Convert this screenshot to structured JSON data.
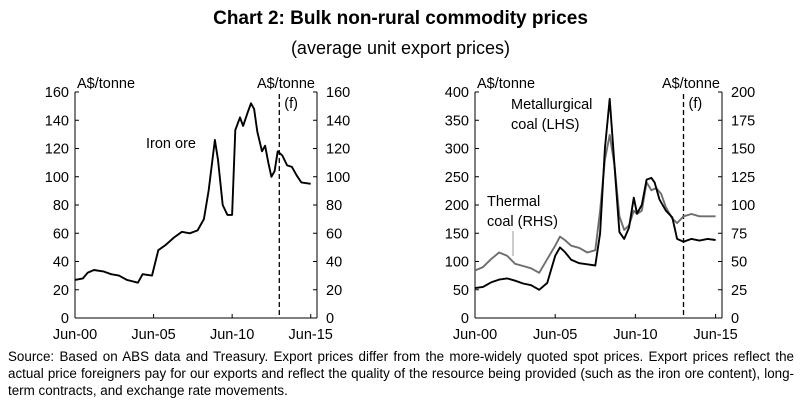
{
  "title": "Chart 2: Bulk non-rural commodity prices",
  "subtitle": "(average unit export prices)",
  "source": "Source: Based on ABS data and Treasury. Export prices differ from the more-widely quoted spot prices. Export prices reflect the actual price foreigners pay for our exports and reflect the quality of the resource being provided (such as the iron ore content), long-term contracts, and exchange rate movements.",
  "colors": {
    "primary": "#000000",
    "secondary": "#6e6e6e"
  },
  "chart_data": [
    {
      "type": "line",
      "name": "iron-ore",
      "unit_left": "A$/tonne",
      "unit_right": "A$/tonne",
      "forecast_marker": "(f)",
      "forecast_start": 2013.0,
      "xlim": [
        2000.0,
        2015.4
      ],
      "ylim": [
        0,
        160
      ],
      "y_ticks": [
        0,
        20,
        40,
        60,
        80,
        100,
        120,
        140,
        160
      ],
      "x_tick_labels": [
        {
          "label": "Jun-00",
          "x": 2000.0
        },
        {
          "label": "Jun-05",
          "x": 2005.0
        },
        {
          "label": "Jun-10",
          "x": 2010.0
        },
        {
          "label": "Jun-15",
          "x": 2015.0
        }
      ],
      "series": [
        {
          "name": "Iron ore",
          "label": "Iron ore",
          "color": "#000000",
          "points": [
            [
              2000.0,
              27
            ],
            [
              2000.5,
              28
            ],
            [
              2000.8,
              32
            ],
            [
              2001.2,
              34
            ],
            [
              2001.8,
              33
            ],
            [
              2002.3,
              31
            ],
            [
              2002.8,
              30
            ],
            [
              2003.3,
              27
            ],
            [
              2004.0,
              25
            ],
            [
              2004.3,
              31
            ],
            [
              2004.9,
              30
            ],
            [
              2005.3,
              48
            ],
            [
              2005.8,
              52
            ],
            [
              2006.3,
              57
            ],
            [
              2006.8,
              61
            ],
            [
              2007.3,
              60
            ],
            [
              2007.8,
              62
            ],
            [
              2008.2,
              70
            ],
            [
              2008.5,
              90
            ],
            [
              2008.9,
              126
            ],
            [
              2009.1,
              112
            ],
            [
              2009.4,
              80
            ],
            [
              2009.7,
              73
            ],
            [
              2010.0,
              73
            ],
            [
              2010.2,
              133
            ],
            [
              2010.5,
              142
            ],
            [
              2010.7,
              136
            ],
            [
              2011.0,
              146
            ],
            [
              2011.2,
              152
            ],
            [
              2011.4,
              148
            ],
            [
              2011.6,
              132
            ],
            [
              2011.9,
              118
            ],
            [
              2012.1,
              122
            ],
            [
              2012.3,
              110
            ],
            [
              2012.5,
              100
            ],
            [
              2012.7,
              104
            ],
            [
              2012.9,
              118
            ],
            [
              2013.2,
              115
            ],
            [
              2013.5,
              108
            ],
            [
              2013.8,
              107
            ],
            [
              2014.1,
              101
            ],
            [
              2014.4,
              96
            ],
            [
              2015.0,
              95
            ]
          ]
        }
      ]
    },
    {
      "type": "line",
      "name": "coal",
      "unit_left": "A$/tonne",
      "unit_right": "A$/tonne",
      "forecast_marker": "(f)",
      "forecast_start": 2013.0,
      "xlim": [
        2000.0,
        2015.4
      ],
      "ylim_left": [
        0,
        400
      ],
      "ylim_right": [
        0,
        200
      ],
      "y_ticks_left": [
        0,
        50,
        100,
        150,
        200,
        250,
        300,
        350,
        400
      ],
      "y_ticks_right": [
        0,
        25,
        50,
        75,
        100,
        125,
        150,
        175,
        200
      ],
      "x_tick_labels": [
        {
          "label": "Jun-00",
          "x": 2000.0
        },
        {
          "label": "Jun-05",
          "x": 2005.0
        },
        {
          "label": "Jun-10",
          "x": 2010.0
        },
        {
          "label": "Jun-15",
          "x": 2015.0
        }
      ],
      "series": [
        {
          "name": "Metallurgical coal (LHS)",
          "label_lines": [
            "Metallurgical",
            "coal (LHS)"
          ],
          "axis": "left",
          "color": "#000000",
          "points": [
            [
              2000.0,
              53
            ],
            [
              2000.5,
              55
            ],
            [
              2001.0,
              63
            ],
            [
              2001.5,
              68
            ],
            [
              2002.0,
              70
            ],
            [
              2002.5,
              66
            ],
            [
              2003.0,
              61
            ],
            [
              2003.5,
              58
            ],
            [
              2004.0,
              50
            ],
            [
              2004.5,
              62
            ],
            [
              2005.0,
              110
            ],
            [
              2005.3,
              125
            ],
            [
              2005.6,
              117
            ],
            [
              2006.0,
              103
            ],
            [
              2006.5,
              97
            ],
            [
              2007.0,
              95
            ],
            [
              2007.5,
              93
            ],
            [
              2007.8,
              150
            ],
            [
              2008.1,
              300
            ],
            [
              2008.4,
              388
            ],
            [
              2008.7,
              270
            ],
            [
              2009.0,
              152
            ],
            [
              2009.3,
              140
            ],
            [
              2009.6,
              160
            ],
            [
              2009.9,
              213
            ],
            [
              2010.1,
              185
            ],
            [
              2010.4,
              200
            ],
            [
              2010.7,
              245
            ],
            [
              2011.0,
              248
            ],
            [
              2011.2,
              240
            ],
            [
              2011.5,
              210
            ],
            [
              2011.9,
              190
            ],
            [
              2012.3,
              178
            ],
            [
              2012.6,
              140
            ],
            [
              2013.0,
              135
            ],
            [
              2013.5,
              140
            ],
            [
              2014.0,
              137
            ],
            [
              2014.5,
              140
            ],
            [
              2015.0,
              138
            ]
          ]
        },
        {
          "name": "Thermal coal (RHS)",
          "label_lines": [
            "Thermal",
            "coal (RHS)"
          ],
          "axis": "right",
          "color": "#6e6e6e",
          "points": [
            [
              2000.0,
              42
            ],
            [
              2000.5,
              45
            ],
            [
              2001.0,
              52
            ],
            [
              2001.5,
              58
            ],
            [
              2002.0,
              55
            ],
            [
              2002.5,
              48
            ],
            [
              2003.0,
              46
            ],
            [
              2003.5,
              44
            ],
            [
              2004.0,
              40
            ],
            [
              2004.5,
              52
            ],
            [
              2005.0,
              64
            ],
            [
              2005.3,
              72
            ],
            [
              2005.6,
              69
            ],
            [
              2006.0,
              64
            ],
            [
              2006.5,
              62
            ],
            [
              2007.0,
              58
            ],
            [
              2007.5,
              60
            ],
            [
              2007.8,
              95
            ],
            [
              2008.1,
              140
            ],
            [
              2008.4,
              162
            ],
            [
              2008.7,
              135
            ],
            [
              2009.0,
              90
            ],
            [
              2009.3,
              78
            ],
            [
              2009.6,
              82
            ],
            [
              2009.9,
              95
            ],
            [
              2010.1,
              92
            ],
            [
              2010.4,
              95
            ],
            [
              2010.7,
              120
            ],
            [
              2011.0,
              113
            ],
            [
              2011.3,
              115
            ],
            [
              2011.6,
              110
            ],
            [
              2011.9,
              98
            ],
            [
              2012.3,
              88
            ],
            [
              2012.6,
              84
            ],
            [
              2013.0,
              90
            ],
            [
              2013.5,
              92
            ],
            [
              2014.0,
              90
            ],
            [
              2014.5,
              90
            ],
            [
              2015.0,
              90
            ]
          ]
        }
      ]
    }
  ]
}
